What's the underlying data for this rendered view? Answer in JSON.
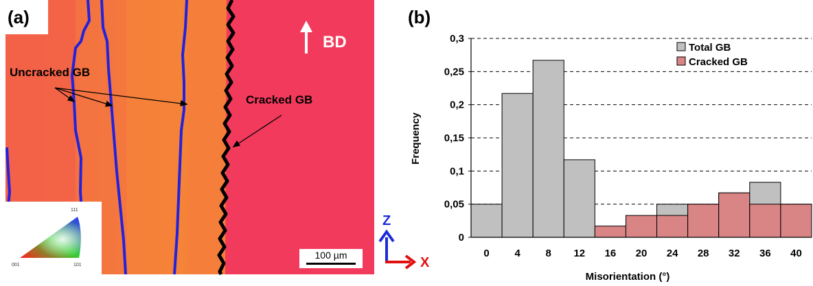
{
  "panel_a": {
    "tag": "(a)",
    "uncracked_label": "Uncracked GB",
    "cracked_label": "Cracked GB",
    "build_direction": "BD",
    "scale_bar": "100 µm",
    "axis_z": "Z",
    "axis_x": "X",
    "ipf_corners": [
      "111",
      "001",
      "101"
    ],
    "colors": {
      "grain_orange": "#f47a3c",
      "grain_red": "#f2385a",
      "uncracked_gb": "#2222dd",
      "cracked_gb": "#000000"
    }
  },
  "panel_b": {
    "tag": "(b)"
  },
  "chart_data": {
    "type": "bar",
    "xlabel": "Misorientation  (°)",
    "ylabel": "Frequency",
    "x_tick_labels": [
      "0",
      "4",
      "8",
      "12",
      "16",
      "20",
      "24",
      "28",
      "32",
      "36",
      "40"
    ],
    "y_tick_labels": [
      "0",
      "0,05",
      "0,1",
      "0,15",
      "0,2",
      "0,25",
      "0,3"
    ],
    "ylim": [
      0,
      0.3
    ],
    "grid": "horizontal dashed",
    "legend_position": "top-right",
    "series": [
      {
        "name": "Total GB",
        "color": "#c0c0c0",
        "values": [
          0.05,
          0.217,
          0.267,
          0.117,
          0,
          0,
          0.05,
          0.05,
          0.067,
          0.083,
          0.05
        ]
      },
      {
        "name": "Cracked GB",
        "color": "#d98585",
        "values": [
          0,
          0,
          0,
          0,
          0.017,
          0.033,
          0.033,
          0.05,
          0.067,
          0.05,
          0.05
        ]
      }
    ]
  }
}
